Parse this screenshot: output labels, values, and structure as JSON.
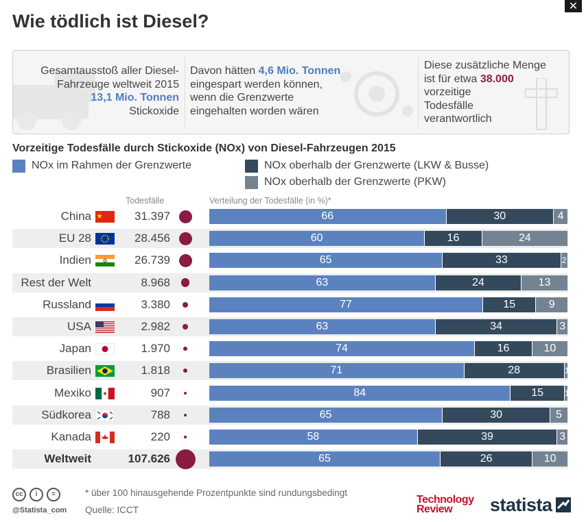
{
  "title": "Wie tödlich ist Diesel?",
  "close_label": "✕",
  "infobox": {
    "col1": {
      "line1": "Gesamtausstoß aller Diesel-",
      "line2": "Fahrzeuge weltweit 2015",
      "highlight": "13,1 Mio. Tonnen",
      "line4": "Stickoxide"
    },
    "col2": {
      "pre": "Davon hätten ",
      "highlight": "4,6 Mio. Tonnen",
      "line2": "eingespart werden können,",
      "line3": "wenn die Grenzwerte",
      "line4": "eingehalten worden wären"
    },
    "col3": {
      "line1": "Diese zusätzliche Menge",
      "pre": "ist für etwa ",
      "highlight": "38.000",
      "line3": "vorzeitige",
      "line4": "Todesfälle",
      "line5": "verantwortlich"
    }
  },
  "colors": {
    "within": "#5b82bf",
    "truck_bus": "#34495c",
    "car": "#748392",
    "bubble": "#8a1b43"
  },
  "chart_data": {
    "type": "bar",
    "stacked": true,
    "orientation": "horizontal",
    "title": "Vorzeitige Todesfälle durch Stickoxide (NOx) von Diesel-Fahrzeugen 2015",
    "deaths_header": "Todesfälle",
    "bar_header": "Verteilung der Todesfälle (in %)*",
    "categories": [
      "China",
      "EU 28",
      "Indien",
      "Rest der Welt",
      "Russland",
      "USA",
      "Japan",
      "Brasilien",
      "Mexiko",
      "Südkorea",
      "Kanada",
      "Weltweit"
    ],
    "deaths": [
      "31.397",
      "28.456",
      "26.739",
      "8.968",
      "3.380",
      "2.982",
      "1.970",
      "1.818",
      "907",
      "788",
      "220",
      "107.626"
    ],
    "deaths_values": [
      31397,
      28456,
      26739,
      8968,
      3380,
      2982,
      1970,
      1818,
      907,
      788,
      220,
      107626
    ],
    "series": [
      {
        "name": "NOx im Rahmen der Grenzwerte",
        "values": [
          66,
          60,
          65,
          63,
          77,
          63,
          74,
          71,
          84,
          65,
          58,
          65
        ]
      },
      {
        "name": "NOx oberhalb der Grenzwerte (LKW & Busse)",
        "values": [
          30,
          16,
          33,
          24,
          15,
          34,
          16,
          28,
          15,
          30,
          39,
          26
        ]
      },
      {
        "name": "NOx oberhalb der Grenzwerte (PKW)",
        "values": [
          4,
          24,
          2,
          13,
          9,
          3,
          10,
          1,
          1,
          5,
          3,
          10
        ]
      }
    ]
  },
  "footer": {
    "footnote": "* über 100 hinausgehende Prozentpunkte sind rundungsbedingt",
    "source": "Quelle: ICCT",
    "credit": "@Statista_com",
    "tr_line1": "Technology",
    "tr_line2": "Review",
    "brand": "statista"
  }
}
